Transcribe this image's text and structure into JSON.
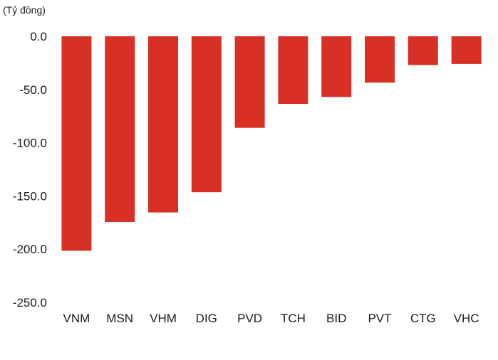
{
  "chart_data": {
    "type": "bar",
    "unit_label": "(Tỷ đồng)",
    "categories": [
      "VNM",
      "MSN",
      "VHM",
      "DIG",
      "PVD",
      "TCH",
      "BID",
      "PVT",
      "CTG",
      "VHC"
    ],
    "values": [
      -201.5,
      -174.5,
      -165.5,
      -146.5,
      -86.0,
      -63.5,
      -57.0,
      -43.5,
      -27.0,
      -26.0
    ],
    "ylim": [
      -250,
      0
    ],
    "yticks": [
      0,
      -50,
      -100,
      -150,
      -200,
      -250
    ],
    "ytick_labels": [
      "0.0",
      "-50.0",
      "-100.0",
      "-150.0",
      "-200.0",
      "-250.0"
    ],
    "bar_color": "#d93025",
    "grid": false,
    "legend": "none"
  }
}
